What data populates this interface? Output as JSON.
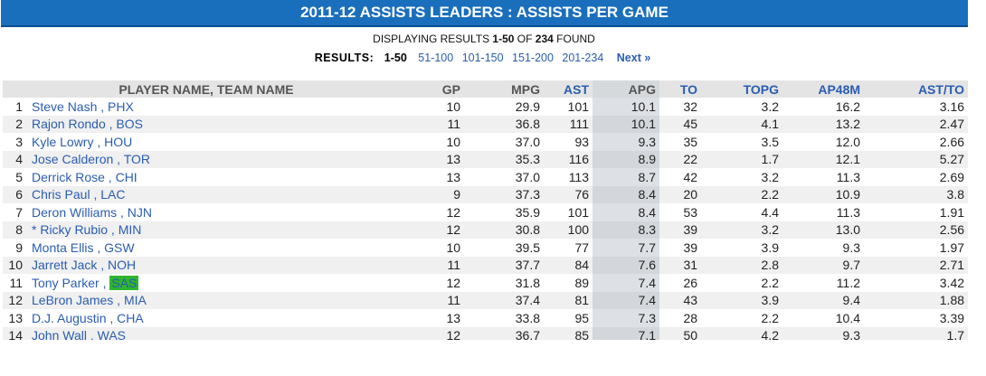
{
  "title": "2011-12 ASSISTS LEADERS :  ASSISTS PER GAME",
  "display": {
    "prefix": "DISPLAYING RESULTS ",
    "range": "1-50",
    "mid": " OF ",
    "total": "234",
    "suffix": " FOUND"
  },
  "results": {
    "label": "RESULTS:",
    "current": "1-50",
    "pages": [
      "51-100",
      "101-150",
      "151-200",
      "201-234"
    ],
    "next": "Next »"
  },
  "table": {
    "headers": {
      "name": "PLAYER NAME, TEAM NAME",
      "gp": "GP",
      "mpg": "MPG",
      "ast": "AST",
      "apg": "APG",
      "to": "TO",
      "topg": "TOPG",
      "ap48m": "AP48M",
      "astto": "AST/TO"
    },
    "rows": [
      {
        "rank": "1",
        "player": "Steve Nash",
        "team": "PHX",
        "gp": "10",
        "mpg": "29.9",
        "ast": "101",
        "apg": "10.1",
        "to": "32",
        "topg": "3.2",
        "ap48m": "16.2",
        "astto": "3.16"
      },
      {
        "rank": "2",
        "player": "Rajon Rondo",
        "team": "BOS",
        "gp": "11",
        "mpg": "36.8",
        "ast": "111",
        "apg": "10.1",
        "to": "45",
        "topg": "4.1",
        "ap48m": "13.2",
        "astto": "2.47"
      },
      {
        "rank": "3",
        "player": "Kyle Lowry",
        "team": "HOU",
        "gp": "10",
        "mpg": "37.0",
        "ast": "93",
        "apg": "9.3",
        "to": "35",
        "topg": "3.5",
        "ap48m": "12.0",
        "astto": "2.66"
      },
      {
        "rank": "4",
        "player": "Jose Calderon",
        "team": "TOR",
        "gp": "13",
        "mpg": "35.3",
        "ast": "116",
        "apg": "8.9",
        "to": "22",
        "topg": "1.7",
        "ap48m": "12.1",
        "astto": "5.27"
      },
      {
        "rank": "5",
        "player": "Derrick Rose",
        "team": "CHI",
        "gp": "13",
        "mpg": "37.0",
        "ast": "113",
        "apg": "8.7",
        "to": "42",
        "topg": "3.2",
        "ap48m": "11.3",
        "astto": "2.69"
      },
      {
        "rank": "6",
        "player": "Chris Paul",
        "team": "LAC",
        "gp": "9",
        "mpg": "37.3",
        "ast": "76",
        "apg": "8.4",
        "to": "20",
        "topg": "2.2",
        "ap48m": "10.9",
        "astto": "3.8"
      },
      {
        "rank": "7",
        "player": "Deron Williams",
        "team": "NJN",
        "gp": "12",
        "mpg": "35.9",
        "ast": "101",
        "apg": "8.4",
        "to": "53",
        "topg": "4.4",
        "ap48m": "11.3",
        "astto": "1.91"
      },
      {
        "rank": "8",
        "player": "* Ricky Rubio",
        "team": "MIN",
        "gp": "12",
        "mpg": "30.8",
        "ast": "100",
        "apg": "8.3",
        "to": "39",
        "topg": "3.2",
        "ap48m": "13.0",
        "astto": "2.56"
      },
      {
        "rank": "9",
        "player": "Monta Ellis",
        "team": "GSW",
        "gp": "10",
        "mpg": "39.5",
        "ast": "77",
        "apg": "7.7",
        "to": "39",
        "topg": "3.9",
        "ap48m": "9.3",
        "astto": "1.97"
      },
      {
        "rank": "10",
        "player": "Jarrett Jack",
        "team": "NOH",
        "gp": "11",
        "mpg": "37.7",
        "ast": "84",
        "apg": "7.6",
        "to": "31",
        "topg": "2.8",
        "ap48m": "9.7",
        "astto": "2.71"
      },
      {
        "rank": "11",
        "player": "Tony Parker",
        "team": "SAS",
        "gp": "12",
        "mpg": "31.8",
        "ast": "89",
        "apg": "7.4",
        "to": "26",
        "topg": "2.2",
        "ap48m": "11.2",
        "astto": "3.42",
        "team_highlight": true
      },
      {
        "rank": "12",
        "player": "LeBron James",
        "team": "MIA",
        "gp": "11",
        "mpg": "37.4",
        "ast": "81",
        "apg": "7.4",
        "to": "43",
        "topg": "3.9",
        "ap48m": "9.4",
        "astto": "1.88"
      },
      {
        "rank": "13",
        "player": "D.J. Augustin",
        "team": "CHA",
        "gp": "13",
        "mpg": "33.8",
        "ast": "95",
        "apg": "7.3",
        "to": "28",
        "topg": "2.2",
        "ap48m": "10.4",
        "astto": "3.39"
      },
      {
        "rank": "14",
        "player": "John Wall",
        "team": "WAS",
        "gp": "12",
        "mpg": "36.7",
        "ast": "85",
        "apg": "7.1",
        "to": "50",
        "topg": "4.2",
        "ap48m": "9.3",
        "astto": "1.7"
      }
    ]
  },
  "colors": {
    "title_bar": "#1a6fbd",
    "link": "#2a5db0",
    "team_highlight": "#2fb52f"
  }
}
